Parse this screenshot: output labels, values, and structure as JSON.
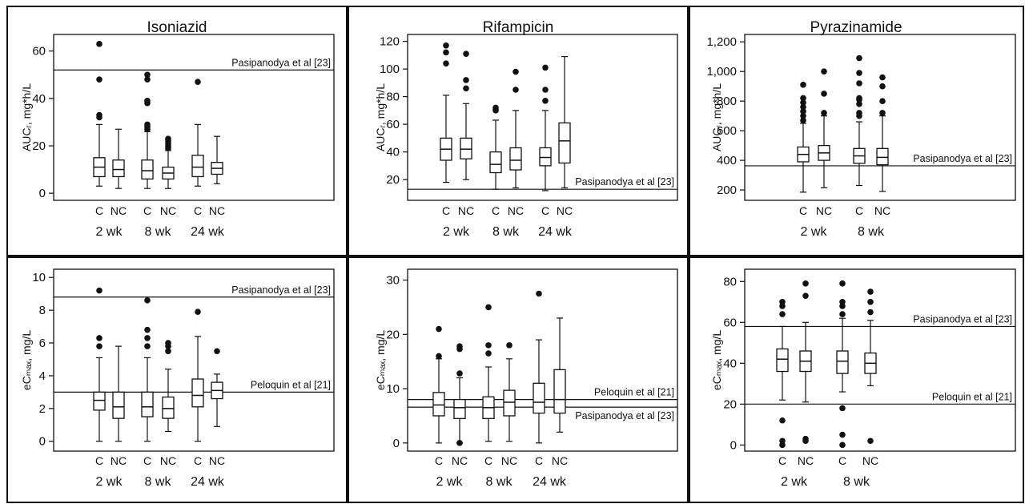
{
  "chart_data": [
    {
      "type": "box",
      "title": "Isoniazid",
      "ylabel": "AUCᵣ, mg*h/L",
      "ylim": [
        -3,
        67
      ],
      "yticks": [
        0,
        20,
        40,
        60
      ],
      "ytick_labels": [
        "0",
        "20",
        "40",
        "60"
      ],
      "groups": [
        "2 wk",
        "8 wk",
        "24 wk"
      ],
      "categories": [
        "C",
        "NC"
      ],
      "reference_lines": [
        {
          "label": "Pasipanodya et al [23]",
          "value": 52
        }
      ],
      "boxes": [
        {
          "group": "2 wk",
          "category": "C",
          "whisker_low": 3,
          "q1": 7,
          "median": 11,
          "q3": 15,
          "whisker_high": 29,
          "outliers": [
            32,
            33,
            48,
            63
          ]
        },
        {
          "group": "2 wk",
          "category": "NC",
          "whisker_low": 2,
          "q1": 7,
          "median": 10,
          "q3": 14,
          "whisker_high": 27,
          "outliers": []
        },
        {
          "group": "8 wk",
          "category": "C",
          "whisker_low": 2,
          "q1": 6,
          "median": 9.5,
          "q3": 14,
          "whisker_high": 26,
          "outliers": [
            27,
            28,
            29,
            38,
            39,
            48,
            50
          ]
        },
        {
          "group": "8 wk",
          "category": "NC",
          "whisker_low": 2,
          "q1": 6,
          "median": 8.5,
          "q3": 11,
          "whisker_high": 18,
          "outliers": [
            19,
            20,
            21,
            22,
            23
          ]
        },
        {
          "group": "24 wk",
          "category": "C",
          "whisker_low": 3,
          "q1": 7,
          "median": 11,
          "q3": 16,
          "whisker_high": 29,
          "outliers": [
            47
          ]
        },
        {
          "group": "24 wk",
          "category": "NC",
          "whisker_low": 4,
          "q1": 8,
          "median": 10.5,
          "q3": 13,
          "whisker_high": 24,
          "outliers": []
        }
      ]
    },
    {
      "type": "box",
      "title": "Rifampicin",
      "ylabel": "AUCᵣ, mg*h/L",
      "ylim": [
        5,
        125
      ],
      "yticks": [
        20,
        40,
        60,
        80,
        100,
        120
      ],
      "ytick_labels": [
        "20",
        "40",
        "60",
        "80",
        "100",
        "120"
      ],
      "groups": [
        "2 wk",
        "8 wk",
        "24 wk"
      ],
      "categories": [
        "C",
        "NC"
      ],
      "reference_lines": [
        {
          "label": "Pasipanodya et al [23]",
          "value": 13
        }
      ],
      "boxes": [
        {
          "group": "2 wk",
          "category": "C",
          "whisker_low": 18,
          "q1": 34,
          "median": 42,
          "q3": 50,
          "whisker_high": 81,
          "outliers": [
            104,
            112,
            117
          ]
        },
        {
          "group": "2 wk",
          "category": "NC",
          "whisker_low": 20,
          "q1": 35,
          "median": 42,
          "q3": 50,
          "whisker_high": 75,
          "outliers": [
            86,
            92,
            111
          ]
        },
        {
          "group": "8 wk",
          "category": "C",
          "whisker_low": 13,
          "q1": 25,
          "median": 31,
          "q3": 40,
          "whisker_high": 63,
          "outliers": [
            70,
            71,
            72
          ]
        },
        {
          "group": "8 wk",
          "category": "NC",
          "whisker_low": 14,
          "q1": 27,
          "median": 34,
          "q3": 43,
          "whisker_high": 70,
          "outliers": [
            85,
            98
          ]
        },
        {
          "group": "24 wk",
          "category": "C",
          "whisker_low": 12,
          "q1": 30,
          "median": 36,
          "q3": 43,
          "whisker_high": 70,
          "outliers": [
            77,
            85,
            101
          ]
        },
        {
          "group": "24 wk",
          "category": "NC",
          "whisker_low": 14,
          "q1": 32,
          "median": 48,
          "q3": 61,
          "whisker_high": 109,
          "outliers": []
        }
      ]
    },
    {
      "type": "box",
      "title": "Pyrazinamide",
      "ylabel": "AUCᵣ, mg*h/L",
      "ylim": [
        130,
        1250
      ],
      "yticks": [
        200,
        400,
        600,
        800,
        1000,
        1200
      ],
      "ytick_labels": [
        "200",
        "400",
        "600",
        "800",
        "1,000",
        "1,200"
      ],
      "groups": [
        "2 wk",
        "8 wk"
      ],
      "categories": [
        "C",
        "NC"
      ],
      "reference_lines": [
        {
          "label": "Pasipanodya et al [23]",
          "value": 363
        }
      ],
      "boxes": [
        {
          "group": "2 wk",
          "category": "C",
          "whisker_low": 185,
          "q1": 390,
          "median": 440,
          "q3": 490,
          "whisker_high": 650,
          "outliers": [
            670,
            700,
            730,
            760,
            790,
            820,
            910
          ]
        },
        {
          "group": "2 wk",
          "category": "NC",
          "whisker_low": 215,
          "q1": 400,
          "median": 450,
          "q3": 500,
          "whisker_high": 700,
          "outliers": [
            720,
            850,
            1000
          ]
        },
        {
          "group": "8 wk",
          "category": "C",
          "whisker_low": 230,
          "q1": 380,
          "median": 430,
          "q3": 480,
          "whisker_high": 660,
          "outliers": [
            700,
            720,
            780,
            810,
            820,
            920,
            990,
            1090
          ]
        },
        {
          "group": "8 wk",
          "category": "NC",
          "whisker_low": 190,
          "q1": 370,
          "median": 420,
          "q3": 480,
          "whisker_high": 700,
          "outliers": [
            720,
            800,
            900,
            960
          ]
        }
      ]
    },
    {
      "type": "box",
      "title": "",
      "ylabel": "eCₘₐₓ, mg/L",
      "ylim": [
        -0.6,
        10.5
      ],
      "yticks": [
        0,
        2,
        4,
        6,
        8,
        10
      ],
      "ytick_labels": [
        "0",
        "2",
        "4",
        "6",
        "8",
        "10"
      ],
      "groups": [
        "2 wk",
        "8 wk",
        "24 wk"
      ],
      "categories": [
        "C",
        "NC"
      ],
      "reference_lines": [
        {
          "label": "Pasipanodya et al [23]",
          "value": 8.8
        },
        {
          "label": "Peloquin et al [21]",
          "value": 3
        }
      ],
      "boxes": [
        {
          "group": "2 wk",
          "category": "C",
          "whisker_low": 0,
          "q1": 1.9,
          "median": 2.5,
          "q3": 3.0,
          "whisker_high": 5.1,
          "outliers": [
            5.8,
            6.3,
            9.2
          ]
        },
        {
          "group": "2 wk",
          "category": "NC",
          "whisker_low": 0,
          "q1": 1.4,
          "median": 2.1,
          "q3": 3.0,
          "whisker_high": 5.8,
          "outliers": []
        },
        {
          "group": "8 wk",
          "category": "C",
          "whisker_low": 0,
          "q1": 1.5,
          "median": 2.1,
          "q3": 3.0,
          "whisker_high": 5.1,
          "outliers": [
            5.8,
            6.3,
            6.8,
            8.6
          ]
        },
        {
          "group": "8 wk",
          "category": "NC",
          "whisker_low": 0.6,
          "q1": 1.4,
          "median": 2.0,
          "q3": 2.7,
          "whisker_high": 4.4,
          "outliers": [
            5.5,
            5.8,
            6.0
          ]
        },
        {
          "group": "24 wk",
          "category": "C",
          "whisker_low": 0,
          "q1": 2.1,
          "median": 2.8,
          "q3": 3.8,
          "whisker_high": 6.4,
          "outliers": [
            7.9
          ]
        },
        {
          "group": "24 wk",
          "category": "NC",
          "whisker_low": 0.9,
          "q1": 2.6,
          "median": 3.1,
          "q3": 3.6,
          "whisker_high": 4.1,
          "outliers": [
            5.5
          ]
        }
      ]
    },
    {
      "type": "box",
      "title": "",
      "ylabel": "eCₘₐₓ, mg/L",
      "ylim": [
        -1.5,
        32
      ],
      "yticks": [
        0,
        10,
        20,
        30
      ],
      "ytick_labels": [
        "0",
        "10",
        "20",
        "30"
      ],
      "groups": [
        "2 wk",
        "8 wk",
        "24 wk"
      ],
      "categories": [
        "C",
        "NC"
      ],
      "reference_lines": [
        {
          "label": "Peloquin et al [21]",
          "value": 8
        },
        {
          "label": "Pasipanodya et al [23]",
          "value": 6.6
        }
      ],
      "boxes": [
        {
          "group": "2 wk",
          "category": "C",
          "whisker_low": 0,
          "q1": 5,
          "median": 7,
          "q3": 9.3,
          "whisker_high": 15.5,
          "outliers": [
            16,
            21
          ]
        },
        {
          "group": "2 wk",
          "category": "NC",
          "whisker_low": 0,
          "q1": 4.5,
          "median": 6.5,
          "q3": 8,
          "whisker_high": 12,
          "outliers": [
            12.8,
            17.3,
            17.8,
            0
          ]
        },
        {
          "group": "8 wk",
          "category": "C",
          "whisker_low": 0.3,
          "q1": 4.5,
          "median": 6.5,
          "q3": 8.5,
          "whisker_high": 14,
          "outliers": [
            16.5,
            18,
            25
          ]
        },
        {
          "group": "8 wk",
          "category": "NC",
          "whisker_low": 0.3,
          "q1": 5,
          "median": 7.5,
          "q3": 9.7,
          "whisker_high": 15.5,
          "outliers": [
            18
          ]
        },
        {
          "group": "24 wk",
          "category": "C",
          "whisker_low": 0,
          "q1": 5.5,
          "median": 7.5,
          "q3": 11,
          "whisker_high": 19,
          "outliers": [
            27.5
          ]
        },
        {
          "group": "24 wk",
          "category": "NC",
          "whisker_low": 2,
          "q1": 5.5,
          "median": 8,
          "q3": 13.5,
          "whisker_high": 23,
          "outliers": []
        }
      ]
    },
    {
      "type": "box",
      "title": "",
      "ylabel": "eCₘₐₓ, mg/L",
      "ylim": [
        -3,
        86
      ],
      "yticks": [
        0,
        20,
        40,
        60,
        80
      ],
      "ytick_labels": [
        "0",
        "20",
        "40",
        "60",
        "80"
      ],
      "groups": [
        "2 wk",
        "8 wk"
      ],
      "categories": [
        "C",
        "NC"
      ],
      "reference_lines": [
        {
          "label": "Pasipanodya et al [23]",
          "value": 58
        },
        {
          "label": "Peloquin et al [21]",
          "value": 20
        }
      ],
      "boxes": [
        {
          "group": "2 wk",
          "category": "C",
          "whisker_low": 22,
          "q1": 36,
          "median": 42,
          "q3": 47,
          "whisker_high": 58,
          "outliers": [
            0,
            2,
            12,
            64,
            68,
            70
          ]
        },
        {
          "group": "2 wk",
          "category": "NC",
          "whisker_low": 21,
          "q1": 36,
          "median": 41,
          "q3": 46,
          "whisker_high": 60,
          "outliers": [
            2,
            3,
            73,
            79
          ]
        },
        {
          "group": "8 wk",
          "category": "C",
          "whisker_low": 26,
          "q1": 35,
          "median": 41,
          "q3": 46,
          "whisker_high": 62,
          "outliers": [
            0,
            5,
            18,
            64,
            68,
            70,
            79
          ]
        },
        {
          "group": "8 wk",
          "category": "NC",
          "whisker_low": 29,
          "q1": 35,
          "median": 40,
          "q3": 45,
          "whisker_high": 61,
          "outliers": [
            2,
            65,
            70,
            75
          ]
        }
      ]
    }
  ]
}
